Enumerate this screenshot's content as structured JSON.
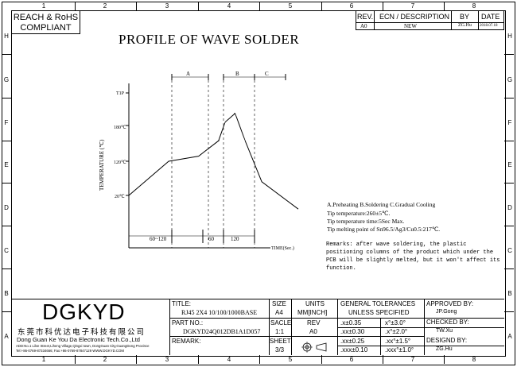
{
  "compliance": "REACH & RoHS COMPLIANT",
  "compliance_line1": "REACH & RoHS",
  "compliance_line2": "COMPLIANT",
  "zones": {
    "columns": [
      "1",
      "2",
      "3",
      "4",
      "5",
      "6",
      "7",
      "8"
    ],
    "rows": [
      "H",
      "G",
      "F",
      "E",
      "D",
      "C",
      "B",
      "A"
    ]
  },
  "revision": {
    "headers": [
      "REV.",
      "ECN / DESCRIPTION",
      "BY",
      "DATE"
    ],
    "row": [
      "A0",
      "NEW",
      "ZG.Hu",
      "2018.07.18"
    ]
  },
  "diagram": {
    "title": "PROFILE OF WAVE SOLDER",
    "ylabel": "TEMPERATURE (℃)",
    "xlabel": "TIME(Sec.)",
    "y_ticks": [
      "T1P",
      "180℃",
      "120℃",
      "20℃"
    ],
    "zones": [
      "A",
      "B",
      "C"
    ],
    "x_segments": [
      "60~120",
      "60",
      "120"
    ],
    "curve": [
      {
        "t": 0,
        "temp": 20
      },
      {
        "t": 60,
        "temp": 120
      },
      {
        "t": 105,
        "temp": 135
      },
      {
        "t": 135,
        "temp": 180
      },
      {
        "t": 145,
        "temp": 235
      },
      {
        "t": 160,
        "temp": 260
      },
      {
        "t": 175,
        "temp": 180
      },
      {
        "t": 200,
        "temp": 60
      },
      {
        "t": 255,
        "temp": -20
      }
    ]
  },
  "notes": {
    "line1": "A.Preheating  B.Soldering  C.Gradual Cooling",
    "line2": "Tip temperature:260±5℃.",
    "line3": "Tip temperature time:5Sec Max.",
    "line4": "Tip melting point of Sn96.5/Ag3/Cu0.5:217℃.",
    "remarks": [
      "Remarks: after wave soldering, the plastic",
      "positioning columns of the product  which under the",
      "PCB will be slightly melted, but it won't affect its",
      "function."
    ]
  },
  "title_block": {
    "logo": "DGKYD",
    "company_cn": "东莞市科优达电子科技有限公司",
    "company_en": "Dong Guan Ke You Da Electronic Tech.Co.,Ltd",
    "address": "ADD:No.1 Lilve Street,Liheng Village,Qingxi town, DongGuan City,GuangDong Province",
    "contact": "Tel:+86-0769-87334666; Fax:+86-0769-87847129  WWW.DGKYD.COM",
    "title_label": "TITLE:",
    "title_value": "RJ45 2X4 10/100/1000BASE",
    "part_label": "PART NO.:",
    "part_value": "DGKYD24Q012DB1A1D057",
    "remark_label": "REMARK:",
    "size_label": "SIZE",
    "size_value": "A4",
    "units_label": "UNITS",
    "units_value": "MM[INCH]",
    "scale_label": "SACLE",
    "scale_value": "1:1",
    "rev_label": "REV",
    "rev_value": "A0",
    "sheet_label": "SHEET",
    "sheet_value": "3/3",
    "tol_header1": "GENERAL TOLERANCES",
    "tol_header2": "UNLESS SPECIFIED",
    "tolerances": [
      [
        ".x±0.35",
        "x°±3.0°"
      ],
      [
        ".xx±0.30",
        ".x°±2.0°"
      ],
      [
        ".xx±0.25",
        ".xx°±1.5°"
      ],
      [
        ".xxx±0.10",
        ".xxx°±1.0°"
      ]
    ],
    "approved_label": "APPROVED BY:",
    "approved_value": "JP.Gong",
    "checked_label": "CHECKED BY:",
    "checked_value": "TW.Xu",
    "designed_label": "DESIGND BY:",
    "designed_value": "ZG.Hu"
  }
}
